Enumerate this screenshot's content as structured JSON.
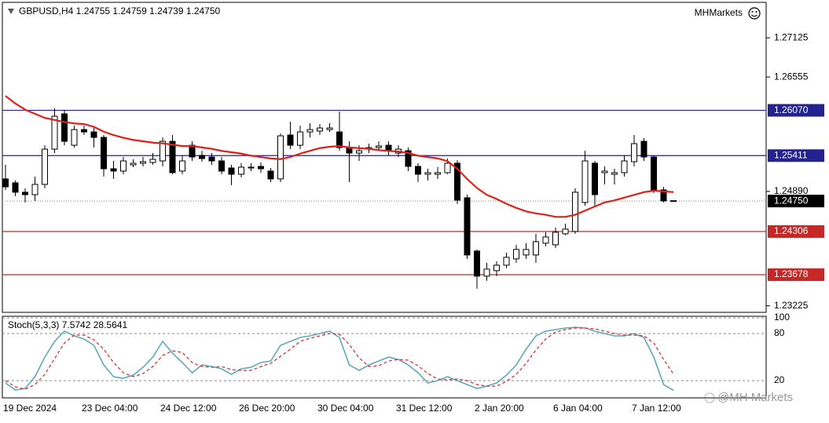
{
  "header": "GBPUSD,H4  1.24755 1.24759 1.24739 1.24750",
  "brand": "MHMarkets",
  "watermark": "@MH Markets",
  "chart_data": [
    {
      "type": "candlestick",
      "categories": [
        "19 Dec 2024",
        null,
        null,
        null,
        null,
        null,
        null,
        null,
        "23 Dec 04:00",
        null,
        null,
        null,
        null,
        null,
        null,
        null,
        "24 Dec 12:00",
        null,
        null,
        null,
        null,
        null,
        null,
        null,
        "26 Dec 20:00",
        null,
        null,
        null,
        null,
        null,
        null,
        null,
        "30 Dec 04:00",
        null,
        null,
        null,
        null,
        null,
        null,
        null,
        "31 Dec 12:00",
        null,
        null,
        null,
        null,
        null,
        null,
        null,
        "2 Jan 20:00",
        null,
        null,
        null,
        null,
        null,
        null,
        null,
        "6 Jan 04:00",
        null,
        null,
        null,
        null,
        null,
        null,
        null,
        "7 Jan 12:00",
        null,
        null,
        null,
        null
      ],
      "open": [
        1.25072,
        1.25015,
        1.24878,
        1.24843,
        1.24992,
        1.25505,
        1.26019,
        1.25562,
        1.2579,
        1.25756,
        1.25676,
        1.2522,
        1.25186,
        1.25277,
        1.253,
        1.25311,
        1.25334,
        1.25619,
        1.25186,
        1.25562,
        1.25414,
        1.25391,
        1.25334,
        1.25231,
        1.2514,
        1.25231,
        1.25254,
        1.25186,
        1.25072,
        1.25711,
        1.25562,
        1.25756,
        1.25768,
        1.2579,
        1.25756,
        1.25528,
        1.25448,
        1.25505,
        1.25528,
        1.25562,
        1.25448,
        1.25482,
        1.25254,
        1.2514,
        1.2514,
        1.25163,
        1.253,
        1.24798,
        1.24022,
        1.23657,
        1.23737,
        1.23816,
        1.23908,
        1.23965,
        1.23965,
        1.24136,
        1.24113,
        1.24273,
        1.24307,
        1.24729,
        1.253,
        1.25163,
        1.2514,
        1.25163,
        1.25323,
        1.25619,
        1.25391,
        1.24912,
        1.24755
      ],
      "high": [
        1.25277,
        1.25049,
        1.24935,
        1.25106,
        1.25562,
        1.26098,
        1.26076,
        1.25847,
        1.25847,
        1.25825,
        1.25711,
        1.25334,
        1.25391,
        1.25357,
        1.25391,
        1.25448,
        1.25676,
        1.25711,
        1.25414,
        1.25619,
        1.25482,
        1.25448,
        1.25391,
        1.25277,
        1.253,
        1.253,
        1.25311,
        1.25231,
        1.25733,
        1.25904,
        1.25847,
        1.25882,
        1.2587,
        1.25882,
        1.26053,
        1.25619,
        1.25562,
        1.25585,
        1.25619,
        1.25619,
        1.25562,
        1.25528,
        1.253,
        1.2522,
        1.25243,
        1.25368,
        1.25345,
        1.24843,
        1.24045,
        1.23851,
        1.23874,
        1.23999,
        1.24113,
        1.24136,
        1.24273,
        1.24296,
        1.24364,
        1.24421,
        1.24935,
        1.25482,
        1.25334,
        1.25254,
        1.2522,
        1.25414,
        1.25711,
        1.25665,
        1.25414,
        1.24957,
        1.24759
      ],
      "low": [
        1.24912,
        1.24821,
        1.24729,
        1.24752,
        1.24935,
        1.25448,
        1.25562,
        1.25528,
        1.25711,
        1.25528,
        1.25106,
        1.25072,
        1.2514,
        1.25243,
        1.25254,
        1.25277,
        1.25254,
        1.2514,
        1.2514,
        1.25334,
        1.25323,
        1.25277,
        1.2514,
        1.2498,
        1.25094,
        1.25186,
        1.25163,
        1.25026,
        1.25026,
        1.25505,
        1.25505,
        1.25676,
        1.25711,
        1.25756,
        1.25482,
        1.25026,
        1.25334,
        1.25448,
        1.25482,
        1.25414,
        1.25391,
        1.25186,
        1.25026,
        1.25049,
        1.25072,
        1.2514,
        1.24706,
        1.23908,
        1.23474,
        1.23588,
        1.23657,
        1.23771,
        1.23851,
        1.23908,
        1.23851,
        1.2409,
        1.24067,
        1.2425,
        1.24273,
        1.24684,
        1.24684,
        1.24992,
        1.24992,
        1.25106,
        1.25254,
        1.25334,
        1.24866,
        1.24729,
        1.24739
      ],
      "close": [
        1.24957,
        1.24878,
        1.24843,
        1.24992,
        1.25505,
        1.25984,
        1.25619,
        1.2579,
        1.25756,
        1.25676,
        1.2522,
        1.25186,
        1.25334,
        1.253,
        1.25323,
        1.25357,
        1.25619,
        1.25163,
        1.25334,
        1.25391,
        1.25368,
        1.25334,
        1.25186,
        1.2514,
        1.25243,
        1.25243,
        1.2522,
        1.25072,
        1.25699,
        1.25562,
        1.25756,
        1.2579,
        1.25813,
        1.25813,
        1.25528,
        1.25448,
        1.25482,
        1.25528,
        1.25551,
        1.25482,
        1.25505,
        1.25254,
        1.2514,
        1.25163,
        1.25163,
        1.253,
        1.24763,
        1.23965,
        1.23657,
        1.23759,
        1.23816,
        1.23931,
        1.24045,
        1.24045,
        1.24159,
        1.24227,
        1.24296,
        1.24341,
        1.24878,
        1.25334,
        1.24843,
        1.25186,
        1.25163,
        1.25334,
        1.25585,
        1.25391,
        1.24912,
        1.24752,
        1.2475
      ],
      "up_color": "#ffffff",
      "down_color": "#000000",
      "wick_color": "#000000",
      "ma": {
        "color": "#e0201b",
        "values": [
          1.2628,
          1.2617,
          1.2608,
          1.2602,
          1.2596,
          1.2593,
          1.259,
          1.2588,
          1.2587,
          1.2583,
          1.2576,
          1.2571,
          1.2567,
          1.2564,
          1.2562,
          1.256,
          1.2559,
          1.2557,
          1.2555,
          1.2555,
          1.2553,
          1.2551,
          1.2548,
          1.2546,
          1.2544,
          1.2541,
          1.2539,
          1.2537,
          1.2536,
          1.2539,
          1.2544,
          1.2548,
          1.2552,
          1.2554,
          1.2555,
          1.2553,
          1.2552,
          1.2551,
          1.2549,
          1.2548,
          1.2547,
          1.2545,
          1.2541,
          1.2539,
          1.2537,
          1.2533,
          1.2522,
          1.2507,
          1.2494,
          1.2484,
          1.2478,
          1.2471,
          1.2465,
          1.246,
          1.2457,
          1.2455,
          1.2452,
          1.2452,
          1.2455,
          1.2461,
          1.2467,
          1.2473,
          1.2476,
          1.248,
          1.2484,
          1.2488,
          1.249,
          1.2489,
          1.2488
        ]
      },
      "ylim": [
        1.2313,
        1.2763
      ],
      "yticks": [
        1.27125,
        1.26555,
        {
          "value": 1.2489,
          "label": "1.24890"
        },
        1.23225
      ],
      "levels": [
        {
          "value": 1.2607,
          "label": "1.26070",
          "color": "#23238f",
          "style": "solid"
        },
        {
          "value": 1.25411,
          "color": "#23238f",
          "style": "solid"
        },
        {
          "value": 1.2475,
          "label": "1.24750",
          "color": "#000000",
          "style": "dotted"
        },
        {
          "value": 1.24306,
          "color": "#c62828",
          "style": "solid"
        },
        {
          "value": 1.23678,
          "color": "#c62828",
          "style": "solid"
        }
      ]
    },
    {
      "type": "line",
      "title": "Stoch(5,3,3) 7.5742 28.5641",
      "series": [
        {
          "color": "#5fa8b8",
          "dash": false,
          "values": [
            17,
            8,
            10,
            25,
            50,
            70,
            83,
            77,
            73,
            65,
            40,
            25,
            23,
            27,
            37,
            50,
            70,
            55,
            43,
            30,
            40,
            38,
            35,
            28,
            35,
            37,
            43,
            45,
            65,
            70,
            75,
            77,
            80,
            83,
            75,
            40,
            33,
            40,
            45,
            50,
            47,
            40,
            30,
            17,
            20,
            25,
            20,
            15,
            10,
            13,
            17,
            27,
            40,
            60,
            77,
            83,
            85,
            87,
            88,
            87,
            83,
            80,
            77,
            77,
            80,
            75,
            50,
            15,
            7.5742
          ]
        },
        {
          "color": "#d62828",
          "dash": true,
          "values": [
            20,
            12,
            9,
            15,
            28,
            48,
            68,
            78,
            78,
            72,
            60,
            43,
            30,
            25,
            29,
            38,
            52,
            58,
            56,
            43,
            38,
            37,
            38,
            34,
            33,
            33,
            38,
            42,
            51,
            60,
            70,
            74,
            77,
            80,
            79,
            66,
            49,
            38,
            39,
            45,
            47,
            46,
            39,
            29,
            22,
            21,
            22,
            20,
            15,
            13,
            13,
            19,
            28,
            42,
            59,
            73,
            82,
            85,
            87,
            87,
            86,
            83,
            80,
            78,
            78,
            77,
            68,
            47,
            28.5641
          ]
        }
      ],
      "ylim": [
        0,
        100
      ],
      "yticks": [
        100,
        80,
        20
      ],
      "grid": true
    }
  ]
}
